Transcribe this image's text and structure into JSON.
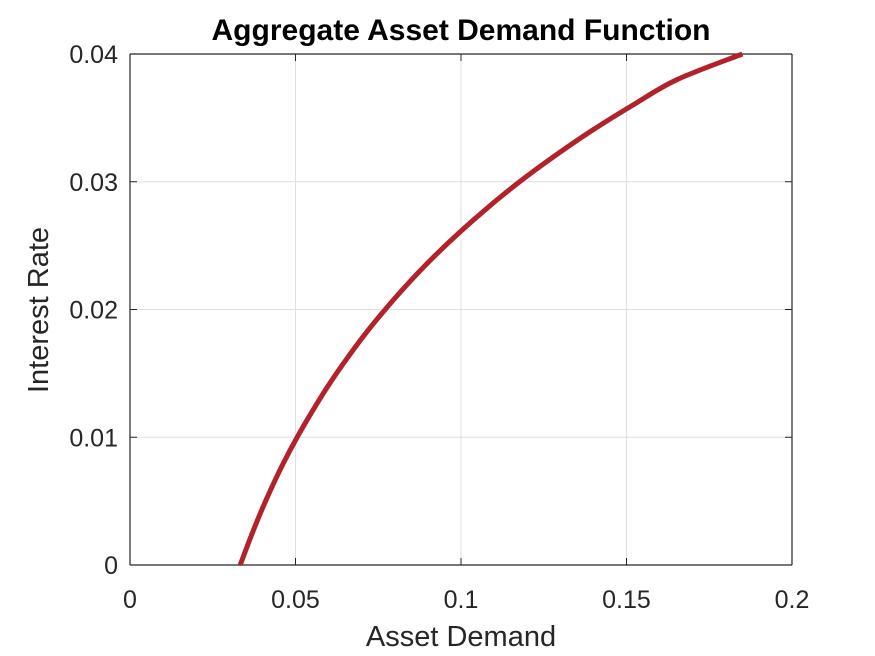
{
  "chart_data": {
    "type": "line",
    "title": "Aggregate Asset Demand Function",
    "xlabel": "Asset Demand",
    "ylabel": "Interest Rate",
    "xlim": [
      0,
      0.2
    ],
    "ylim": [
      0,
      0.04
    ],
    "xticks": [
      0,
      0.05,
      0.1,
      0.15,
      0.2
    ],
    "xtick_labels": [
      "0",
      "0.05",
      "0.1",
      "0.15",
      "0.2"
    ],
    "yticks": [
      0,
      0.01,
      0.02,
      0.03,
      0.04
    ],
    "ytick_labels": [
      "0",
      "0.01",
      "0.02",
      "0.03",
      "0.04"
    ],
    "grid": true,
    "line_color": "#B2222B",
    "series": [
      {
        "x": [
          0.0333,
          0.0362,
          0.0393,
          0.0427,
          0.0464,
          0.0505,
          0.055,
          0.0598,
          0.0651,
          0.0708,
          0.0771,
          0.0839,
          0.0913,
          0.0994,
          0.1082,
          0.1177,
          0.1282,
          0.1395,
          0.1519,
          0.1653,
          0.185
        ],
        "y": [
          0.0,
          0.002,
          0.004,
          0.006,
          0.008,
          0.01,
          0.012,
          0.014,
          0.016,
          0.018,
          0.02,
          0.022,
          0.024,
          0.026,
          0.028,
          0.03,
          0.032,
          0.034,
          0.036,
          0.038,
          0.04
        ]
      }
    ]
  }
}
